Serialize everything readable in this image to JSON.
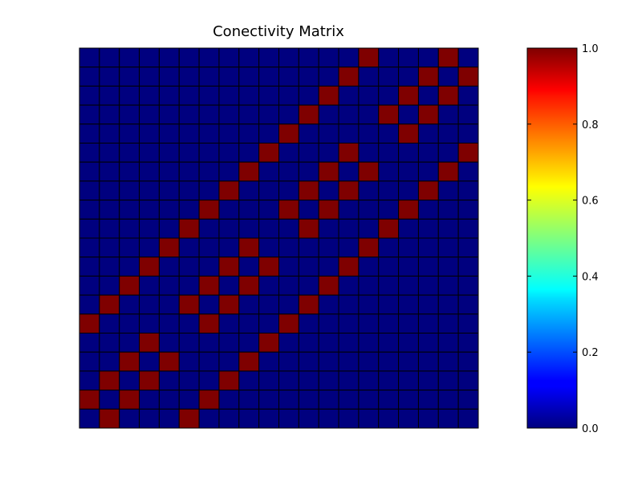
{
  "chart_data": {
    "type": "heatmap",
    "title": "Conectivity Matrix",
    "xlabel": "",
    "ylabel": "",
    "rows": 20,
    "cols": 20,
    "values": [
      [
        0,
        0,
        0,
        0,
        0,
        0,
        0,
        0,
        0,
        0,
        0,
        0,
        0,
        0,
        1,
        0,
        0,
        0,
        1,
        0
      ],
      [
        0,
        0,
        0,
        0,
        0,
        0,
        0,
        0,
        0,
        0,
        0,
        0,
        0,
        1,
        0,
        0,
        0,
        1,
        0,
        1
      ],
      [
        0,
        0,
        0,
        0,
        0,
        0,
        0,
        0,
        0,
        0,
        0,
        0,
        1,
        0,
        0,
        0,
        1,
        0,
        1,
        0
      ],
      [
        0,
        0,
        0,
        0,
        0,
        0,
        0,
        0,
        0,
        0,
        0,
        1,
        0,
        0,
        0,
        1,
        0,
        1,
        0,
        0
      ],
      [
        0,
        0,
        0,
        0,
        0,
        0,
        0,
        0,
        0,
        0,
        1,
        0,
        0,
        0,
        0,
        0,
        1,
        0,
        0,
        0
      ],
      [
        0,
        0,
        0,
        0,
        0,
        0,
        0,
        0,
        0,
        1,
        0,
        0,
        0,
        1,
        0,
        0,
        0,
        0,
        0,
        1
      ],
      [
        0,
        0,
        0,
        0,
        0,
        0,
        0,
        0,
        1,
        0,
        0,
        0,
        1,
        0,
        1,
        0,
        0,
        0,
        1,
        0
      ],
      [
        0,
        0,
        0,
        0,
        0,
        0,
        0,
        1,
        0,
        0,
        0,
        1,
        0,
        1,
        0,
        0,
        0,
        1,
        0,
        0
      ],
      [
        0,
        0,
        0,
        0,
        0,
        0,
        1,
        0,
        0,
        0,
        1,
        0,
        1,
        0,
        0,
        0,
        1,
        0,
        0,
        0
      ],
      [
        0,
        0,
        0,
        0,
        0,
        1,
        0,
        0,
        0,
        0,
        0,
        1,
        0,
        0,
        0,
        1,
        0,
        0,
        0,
        0
      ],
      [
        0,
        0,
        0,
        0,
        1,
        0,
        0,
        0,
        1,
        0,
        0,
        0,
        0,
        0,
        1,
        0,
        0,
        0,
        0,
        0
      ],
      [
        0,
        0,
        0,
        1,
        0,
        0,
        0,
        1,
        0,
        1,
        0,
        0,
        0,
        1,
        0,
        0,
        0,
        0,
        0,
        0
      ],
      [
        0,
        0,
        1,
        0,
        0,
        0,
        1,
        0,
        1,
        0,
        0,
        0,
        1,
        0,
        0,
        0,
        0,
        0,
        0,
        0
      ],
      [
        0,
        1,
        0,
        0,
        0,
        1,
        0,
        1,
        0,
        0,
        0,
        1,
        0,
        0,
        0,
        0,
        0,
        0,
        0,
        0
      ],
      [
        1,
        0,
        0,
        0,
        0,
        0,
        1,
        0,
        0,
        0,
        1,
        0,
        0,
        0,
        0,
        0,
        0,
        0,
        0,
        0
      ],
      [
        0,
        0,
        0,
        1,
        0,
        0,
        0,
        0,
        0,
        1,
        0,
        0,
        0,
        0,
        0,
        0,
        0,
        0,
        0,
        0
      ],
      [
        0,
        0,
        1,
        0,
        1,
        0,
        0,
        0,
        1,
        0,
        0,
        0,
        0,
        0,
        0,
        0,
        0,
        0,
        0,
        0
      ],
      [
        0,
        1,
        0,
        1,
        0,
        0,
        0,
        1,
        0,
        0,
        0,
        0,
        0,
        0,
        0,
        0,
        0,
        0,
        0,
        0
      ],
      [
        1,
        0,
        1,
        0,
        0,
        0,
        1,
        0,
        0,
        0,
        0,
        0,
        0,
        0,
        0,
        0,
        0,
        0,
        0,
        0
      ],
      [
        0,
        1,
        0,
        0,
        0,
        1,
        0,
        0,
        0,
        0,
        0,
        0,
        0,
        0,
        0,
        0,
        0,
        0,
        0,
        0
      ]
    ],
    "vmin": 0.0,
    "vmax": 1.0,
    "colormap": "jet",
    "colorbar": {
      "ticks": [
        0.0,
        0.2,
        0.4,
        0.6,
        0.8,
        1.0
      ],
      "tick_labels": [
        "0.0",
        "0.2",
        "0.4",
        "0.6",
        "0.8",
        "1.0"
      ]
    },
    "low_color": "#00007f",
    "high_color": "#7f0000",
    "grid_line_color": "#000000",
    "grid": true,
    "legend": false
  }
}
